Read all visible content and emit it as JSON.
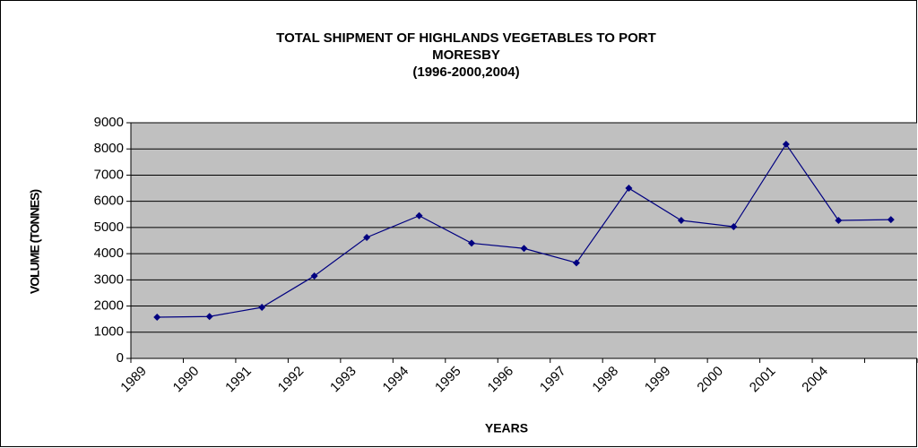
{
  "chart_data": {
    "type": "line",
    "title": [
      "TOTAL SHIPMENT OF HIGHLANDS VEGETABLES TO PORT",
      "MORESBY",
      "(1996-2000,2004)"
    ],
    "x_label": "YEARS",
    "y_label": "VOLUME (TONNES)",
    "categories": [
      "1989",
      "1990",
      "1991",
      "1992",
      "1993",
      "1994",
      "1995",
      "1996",
      "1997",
      "1998",
      "1999",
      "2000",
      "2001",
      "2004",
      null
    ],
    "values": [
      1575,
      1600,
      1950,
      3150,
      4620,
      5450,
      4400,
      4200,
      3650,
      6500,
      5270,
      5030,
      8180,
      5270,
      5300
    ],
    "color": "#000080",
    "plot_background": "#c0c0c0",
    "ylim": [
      0,
      9000
    ],
    "yticks": [
      0,
      1000,
      2000,
      3000,
      4000,
      5000,
      6000,
      7000,
      8000,
      9000
    ],
    "grid": true
  }
}
